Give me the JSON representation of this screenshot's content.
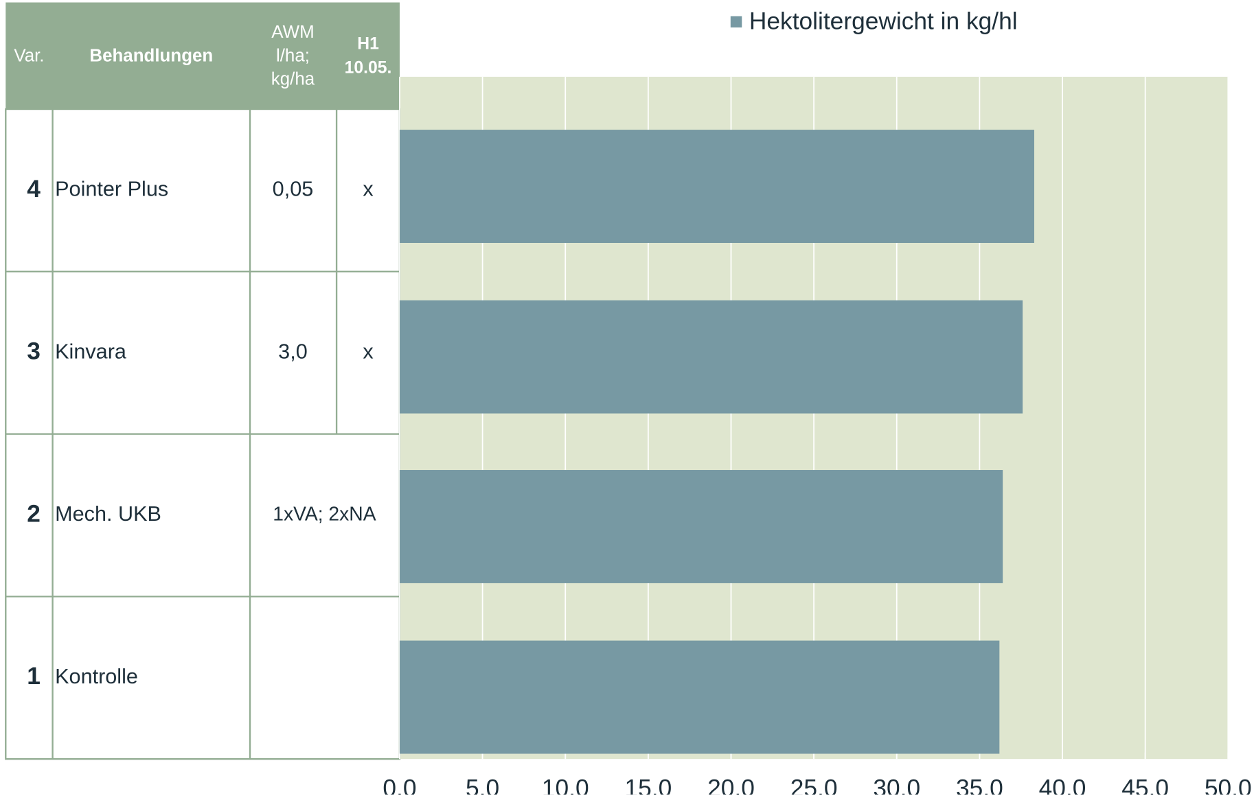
{
  "table": {
    "header": [
      [
        "Var."
      ],
      [
        "Behandlungen"
      ],
      [
        "AWM",
        "l/ha;",
        "kg/ha"
      ],
      [
        "H1",
        "10.05."
      ]
    ],
    "rows": [
      [
        "4",
        "Pointer Plus",
        "0,05",
        "x"
      ],
      [
        "3",
        "Kinvara",
        "3,0",
        "x"
      ],
      [
        "2",
        "Mech. UKB",
        "1xVA; 2xNA"
      ],
      [
        "1",
        "Kontrolle"
      ]
    ]
  },
  "chart_data": {
    "type": "bar",
    "orientation": "horizontal",
    "series": [
      {
        "name": "Hektolitergewicht in kg/hl",
        "color": "#7799a3",
        "values": [
          38.3,
          37.6,
          36.4,
          36.2
        ]
      }
    ],
    "xlim": [
      0,
      50
    ],
    "xticks": [
      {
        "value": 0,
        "label": "0,0"
      },
      {
        "value": 5,
        "label": "5,0"
      },
      {
        "value": 10,
        "label": "10,0"
      },
      {
        "value": 15,
        "label": "15,0"
      },
      {
        "value": 20,
        "label": "20,0"
      },
      {
        "value": 25,
        "label": "25,0"
      },
      {
        "value": 30,
        "label": "30,0"
      },
      {
        "value": 35,
        "label": "35,0"
      },
      {
        "value": 40,
        "label": "40,0"
      },
      {
        "value": 45,
        "label": "45,0"
      },
      {
        "value": 50,
        "label": "50,0"
      }
    ],
    "grid": true,
    "legend": "top"
  }
}
